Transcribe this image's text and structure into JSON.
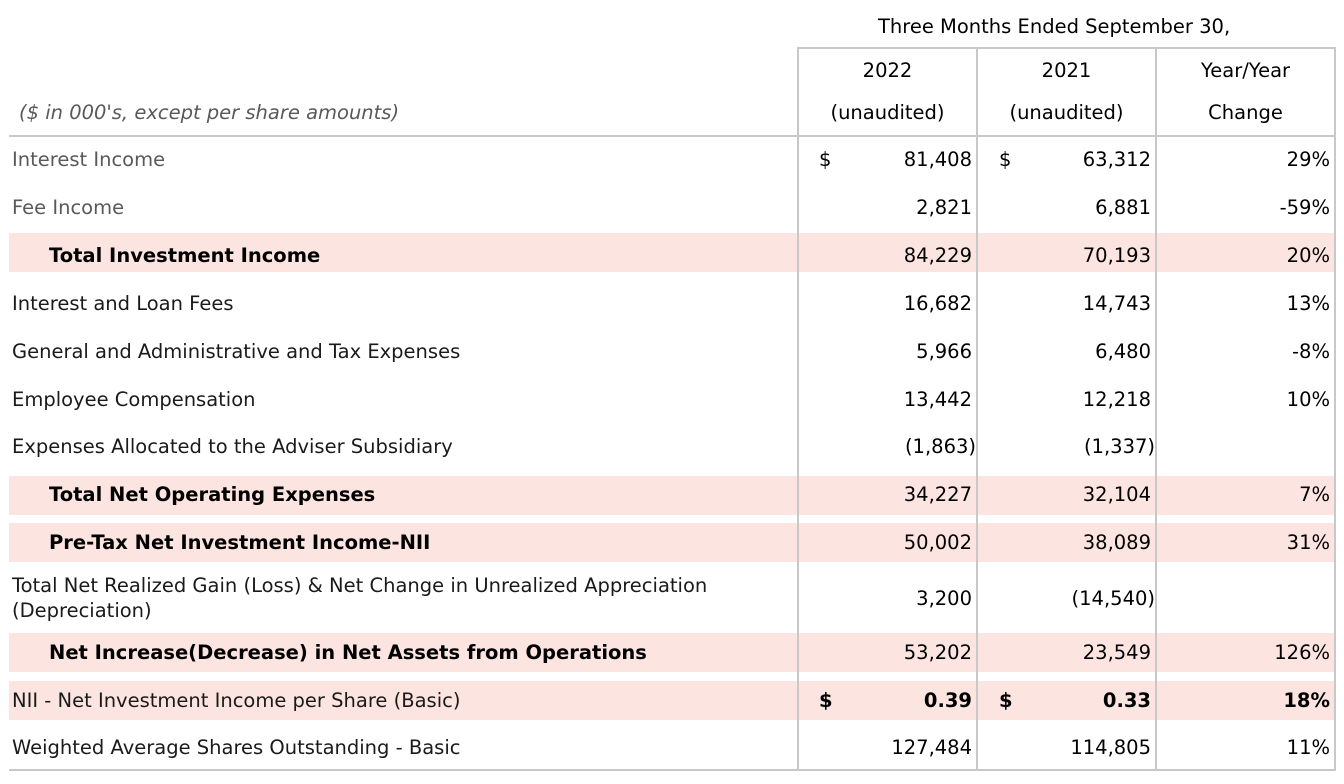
{
  "header": {
    "period": "Three Months Ended September 30,",
    "units_note": "($ in 000's, except per share amounts)",
    "columns": [
      {
        "line1": "2022",
        "line2": "(unaudited)"
      },
      {
        "line1": "2021",
        "line2": "(unaudited)"
      },
      {
        "line1": "Year/Year",
        "line2": "Change"
      }
    ]
  },
  "rows": [
    {
      "label": "Interest Income",
      "dollar_2022": "$",
      "v2022": "81,408",
      "dollar_2021": "$",
      "v2021": "63,312",
      "change": "29%"
    },
    {
      "label": "Fee Income",
      "v2022": "2,821",
      "v2021": "6,881",
      "change": "-59%"
    },
    {
      "label": "Total Investment Income",
      "v2022": "84,229",
      "v2021": "70,193",
      "change": "20%"
    },
    {
      "label": "Interest and Loan Fees",
      "v2022": "16,682",
      "v2021": "14,743",
      "change": "13%"
    },
    {
      "label": "General and Administrative and Tax Expenses",
      "v2022": "5,966",
      "v2021": "6,480",
      "change": "-8%"
    },
    {
      "label": "Employee Compensation",
      "v2022": "13,442",
      "v2021": "12,218",
      "change": "10%"
    },
    {
      "label": "Expenses Allocated to the Adviser Subsidiary",
      "v2022": "(1,863)",
      "v2021": "(1,337)",
      "change": ""
    },
    {
      "label": "Total Net Operating Expenses",
      "v2022": "34,227",
      "v2021": "32,104",
      "change": "7%"
    },
    {
      "label": "Pre-Tax Net Investment Income-NII",
      "v2022": "50,002",
      "v2021": "38,089",
      "change": "31%"
    },
    {
      "label": "Total Net Realized Gain (Loss) & Net Change in Unrealized Appreciation (Depreciation)",
      "v2022": "3,200",
      "v2021": "(14,540)",
      "change": ""
    },
    {
      "label": "Net Increase(Decrease) in Net Assets from Operations",
      "v2022": "53,202",
      "v2021": "23,549",
      "change": "126%"
    },
    {
      "label": "NII - Net Investment Income per Share (Basic)",
      "dollar_2022": "$",
      "v2022": "0.39",
      "dollar_2021": "$",
      "v2021": "0.33",
      "change": "18%"
    },
    {
      "label": "Weighted Average Shares Outstanding - Basic",
      "v2022": "127,484",
      "v2021": "114,805",
      "change": "11%"
    }
  ],
  "colors": {
    "highlight_band": "#fce4e0",
    "rule": "#c8c8c8",
    "muted_text": "#595959"
  }
}
